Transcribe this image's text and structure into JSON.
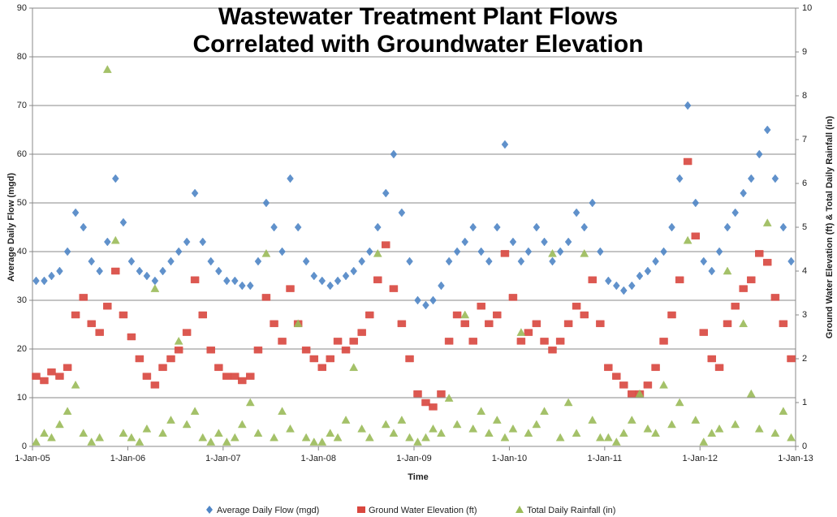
{
  "chart_data": {
    "type": "scatter",
    "title": [
      "Wastewater Treatment Plant Flows",
      "Correlated with Groundwater Elevation"
    ],
    "x_label": "Time",
    "y_label": "Average Daily Flow (mgd)",
    "y2_label": "Ground Water Elevation (ft) & Total Daily Rainfall (in)",
    "xlim": [
      "2005-01-01",
      "2013-01-01"
    ],
    "xticks": [
      {
        "value": "2005-01-01",
        "label": "1-Jan-05"
      },
      {
        "value": "2006-01-01",
        "label": "1-Jan-06"
      },
      {
        "value": "2007-01-01",
        "label": "1-Jan-07"
      },
      {
        "value": "2008-01-01",
        "label": "1-Jan-08"
      },
      {
        "value": "2009-01-01",
        "label": "1-Jan-09"
      },
      {
        "value": "2010-01-01",
        "label": "1-Jan-10"
      },
      {
        "value": "2011-01-01",
        "label": "1-Jan-11"
      },
      {
        "value": "2012-01-01",
        "label": "1-Jan-12"
      },
      {
        "value": "2013-01-01",
        "label": "1-Jan-13"
      }
    ],
    "ylim": [
      0,
      90
    ],
    "yticks": [
      0,
      10,
      20,
      30,
      40,
      50,
      60,
      70,
      80,
      90
    ],
    "y2lim": [
      0,
      10
    ],
    "y2ticks": [
      0,
      1,
      2,
      3,
      4,
      5,
      6,
      7,
      8,
      9,
      10
    ],
    "grid": true,
    "legend": "bottom",
    "x": [
      "2005-01-15",
      "2005-02-15",
      "2005-03-15",
      "2005-04-15",
      "2005-05-15",
      "2005-06-15",
      "2005-07-15",
      "2005-08-15",
      "2005-09-15",
      "2005-10-15",
      "2005-11-15",
      "2005-12-15",
      "2006-01-15",
      "2006-02-15",
      "2006-03-15",
      "2006-04-15",
      "2006-05-15",
      "2006-06-15",
      "2006-07-15",
      "2006-08-15",
      "2006-09-15",
      "2006-10-15",
      "2006-11-15",
      "2006-12-15",
      "2007-01-15",
      "2007-02-15",
      "2007-03-15",
      "2007-04-15",
      "2007-05-15",
      "2007-06-15",
      "2007-07-15",
      "2007-08-15",
      "2007-09-15",
      "2007-10-15",
      "2007-11-15",
      "2007-12-15",
      "2008-01-15",
      "2008-02-15",
      "2008-03-15",
      "2008-04-15",
      "2008-05-15",
      "2008-06-15",
      "2008-07-15",
      "2008-08-15",
      "2008-09-15",
      "2008-10-15",
      "2008-11-15",
      "2008-12-15",
      "2009-01-15",
      "2009-02-15",
      "2009-03-15",
      "2009-04-15",
      "2009-05-15",
      "2009-06-15",
      "2009-07-15",
      "2009-08-15",
      "2009-09-15",
      "2009-10-15",
      "2009-11-15",
      "2009-12-15",
      "2010-01-15",
      "2010-02-15",
      "2010-03-15",
      "2010-04-15",
      "2010-05-15",
      "2010-06-15",
      "2010-07-15",
      "2010-08-15",
      "2010-09-15",
      "2010-10-15",
      "2010-11-15",
      "2010-12-15",
      "2011-01-15",
      "2011-02-15",
      "2011-03-15",
      "2011-04-15",
      "2011-05-15",
      "2011-06-15",
      "2011-07-15",
      "2011-08-15",
      "2011-09-15",
      "2011-10-15",
      "2011-11-15",
      "2011-12-15",
      "2012-01-15",
      "2012-02-15",
      "2012-03-15",
      "2012-04-15",
      "2012-05-15",
      "2012-06-15",
      "2012-07-15",
      "2012-08-15",
      "2012-09-15",
      "2012-10-15",
      "2012-11-15",
      "2012-12-15"
    ],
    "series": [
      {
        "name": "Average Daily Flow (mgd)",
        "color": "#4f86c6",
        "marker": "diamond",
        "axis": "y",
        "values": [
          34,
          34,
          35,
          36,
          40,
          48,
          45,
          38,
          36,
          42,
          55,
          46,
          38,
          36,
          35,
          34,
          36,
          38,
          40,
          42,
          52,
          42,
          38,
          36,
          34,
          34,
          33,
          33,
          38,
          50,
          45,
          40,
          55,
          45,
          38,
          35,
          34,
          33,
          34,
          35,
          36,
          38,
          40,
          45,
          52,
          60,
          48,
          38,
          30,
          29,
          30,
          33,
          38,
          40,
          42,
          45,
          40,
          38,
          45,
          62,
          42,
          38,
          40,
          45,
          42,
          38,
          40,
          42,
          48,
          45,
          50,
          40,
          34,
          33,
          32,
          33,
          35,
          36,
          38,
          40,
          45,
          55,
          70,
          50,
          38,
          36,
          40,
          45,
          48,
          52,
          55,
          60,
          65,
          55,
          45,
          38
        ]
      },
      {
        "name": "Ground Water Elevation (ft)",
        "color": "#d9473f",
        "marker": "square",
        "axis": "y2",
        "values": [
          1.6,
          1.5,
          1.7,
          1.6,
          1.8,
          3.0,
          3.4,
          2.8,
          2.6,
          3.2,
          4.0,
          3.0,
          2.5,
          2.0,
          1.6,
          1.4,
          1.8,
          2.0,
          2.2,
          2.6,
          3.8,
          3.0,
          2.2,
          1.8,
          1.6,
          1.6,
          1.5,
          1.6,
          2.2,
          3.4,
          2.8,
          2.4,
          3.6,
          2.8,
          2.2,
          2.0,
          1.8,
          2.0,
          2.4,
          2.2,
          2.4,
          2.6,
          3.0,
          3.8,
          4.6,
          3.6,
          2.8,
          2.0,
          1.2,
          1.0,
          0.9,
          1.2,
          2.4,
          3.0,
          2.8,
          2.4,
          3.2,
          2.8,
          3.0,
          4.4,
          3.4,
          2.4,
          2.6,
          2.8,
          2.4,
          2.2,
          2.4,
          2.8,
          3.2,
          3.0,
          3.8,
          2.8,
          1.8,
          1.6,
          1.4,
          1.2,
          1.2,
          1.4,
          1.8,
          2.4,
          3.0,
          3.8,
          6.5,
          4.8,
          2.6,
          2.0,
          1.8,
          2.8,
          3.2,
          3.6,
          3.8,
          4.4,
          4.2,
          3.4,
          2.8,
          2.0
        ]
      },
      {
        "name": "Total Daily Rainfall (in)",
        "color": "#9bbb59",
        "marker": "triangle",
        "axis": "y2",
        "values": [
          0.1,
          0.3,
          0.2,
          0.5,
          0.8,
          1.4,
          0.3,
          0.1,
          0.2,
          8.6,
          4.7,
          0.3,
          0.2,
          0.1,
          0.4,
          3.6,
          0.3,
          0.6,
          2.4,
          0.5,
          0.8,
          0.2,
          0.1,
          0.3,
          0.1,
          0.2,
          0.5,
          1.0,
          0.3,
          4.4,
          0.2,
          0.8,
          0.4,
          2.8,
          0.2,
          0.1,
          0.1,
          0.3,
          0.2,
          0.6,
          1.8,
          0.4,
          0.2,
          4.4,
          0.5,
          0.3,
          0.6,
          0.2,
          0.1,
          0.2,
          0.4,
          0.3,
          1.1,
          0.5,
          3.0,
          0.4,
          0.8,
          0.3,
          0.6,
          0.2,
          0.4,
          2.6,
          0.3,
          0.5,
          0.8,
          4.4,
          0.2,
          1.0,
          0.3,
          4.4,
          0.6,
          0.2,
          0.2,
          0.1,
          0.3,
          0.6,
          1.2,
          0.4,
          0.3,
          1.4,
          0.5,
          1.0,
          4.7,
          0.6,
          0.1,
          0.3,
          0.4,
          4.0,
          0.5,
          2.8,
          1.2,
          0.4,
          5.1,
          0.3,
          0.8,
          0.2
        ]
      }
    ]
  }
}
